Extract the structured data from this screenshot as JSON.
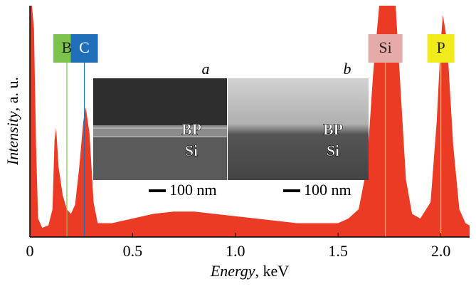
{
  "chart_data": {
    "type": "area",
    "ylabel": "Intensity",
    "ylabel_unit": ", a. u.",
    "xlabel": "Energy",
    "xlabel_unit": ", keV",
    "color": "#ec3b24",
    "x": [
      0,
      0.01,
      0.02,
      0.03,
      0.04,
      0.06,
      0.09,
      0.11,
      0.12,
      0.128,
      0.14,
      0.16,
      0.18,
      0.2,
      0.22,
      0.24,
      0.26,
      0.272,
      0.29,
      0.31,
      0.33,
      0.4,
      0.5,
      0.6,
      0.7,
      0.8,
      0.9,
      1.0,
      1.1,
      1.2,
      1.3,
      1.4,
      1.5,
      1.55,
      1.6,
      1.64,
      1.67,
      1.7,
      1.78,
      1.8,
      1.83,
      1.86,
      1.9,
      1.95,
      1.98,
      2.0,
      2.01,
      2.03,
      2.06,
      2.09,
      2.12,
      2.14
    ],
    "y": [
      100,
      100,
      90,
      40,
      8,
      4,
      5,
      12,
      42,
      47,
      30,
      18,
      12,
      10,
      14,
      30,
      50,
      56,
      45,
      15,
      6,
      6,
      8,
      10,
      11,
      11,
      10,
      9,
      8,
      7,
      6,
      6,
      6,
      8,
      12,
      30,
      70,
      100,
      100,
      70,
      25,
      10,
      8,
      15,
      50,
      85,
      96,
      85,
      40,
      12,
      6,
      5
    ],
    "xlim": [
      0,
      2.14
    ],
    "ylim": [
      0,
      100
    ],
    "xticks": [
      0,
      0.5,
      {
        "value": 1,
        "label": "1.0"
      },
      1.5,
      {
        "value": 2,
        "label": "2.0"
      }
    ],
    "markers": [
      {
        "label": "B",
        "x": 0.18,
        "color": "#7dc24b"
      },
      {
        "label": "C",
        "x": 0.265,
        "color": "#1f6fb8"
      },
      {
        "label": "Si",
        "x": 1.73,
        "color": "#e6aaa8"
      },
      {
        "label": "P",
        "x": 2.0,
        "color": "#f2eb1b"
      }
    ],
    "insets": [
      {
        "label": "a",
        "layers": [
          "BP",
          "Si"
        ],
        "scale": "100 nm"
      },
      {
        "label": "b",
        "layers": [
          "BP",
          "Si"
        ],
        "scale": "100 nm"
      }
    ]
  }
}
